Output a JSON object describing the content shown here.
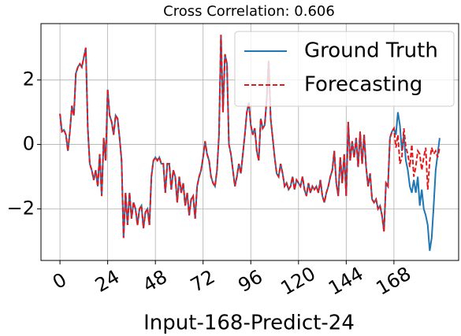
{
  "chart_data": {
    "type": "line",
    "title": "Cross Correlation: 0.606",
    "x_label": "Input-168-Predict-24",
    "x": [
      0,
      1,
      2,
      3,
      4,
      5,
      6,
      7,
      8,
      9,
      10,
      11,
      12,
      13,
      14,
      15,
      16,
      17,
      18,
      19,
      20,
      21,
      22,
      23,
      24,
      25,
      26,
      27,
      28,
      29,
      30,
      31,
      32,
      33,
      34,
      35,
      36,
      37,
      38,
      39,
      40,
      41,
      42,
      43,
      44,
      45,
      46,
      47,
      48,
      49,
      50,
      51,
      52,
      53,
      54,
      55,
      56,
      57,
      58,
      59,
      60,
      61,
      62,
      63,
      64,
      65,
      66,
      67,
      68,
      69,
      70,
      71,
      72,
      73,
      74,
      75,
      76,
      77,
      78,
      79,
      80,
      81,
      82,
      83,
      84,
      85,
      86,
      87,
      88,
      89,
      90,
      91,
      92,
      93,
      94,
      95,
      96,
      97,
      98,
      99,
      100,
      101,
      102,
      103,
      104,
      105,
      106,
      107,
      108,
      109,
      110,
      111,
      112,
      113,
      114,
      115,
      116,
      117,
      118,
      119,
      120,
      121,
      122,
      123,
      124,
      125,
      126,
      127,
      128,
      129,
      130,
      131,
      132,
      133,
      134,
      135,
      136,
      137,
      138,
      139,
      140,
      141,
      142,
      143,
      144,
      145,
      146,
      147,
      148,
      149,
      150,
      151,
      152,
      153,
      154,
      155,
      156,
      157,
      158,
      159,
      160,
      161,
      162,
      163,
      164,
      165,
      166,
      167,
      168,
      169,
      170,
      171,
      172,
      173,
      174,
      175,
      176,
      177,
      178,
      179,
      180,
      181,
      182,
      183,
      184,
      185,
      186,
      187,
      188,
      189,
      190,
      191
    ],
    "series": [
      {
        "name": "Ground Truth",
        "color": "#1f77b4",
        "dash": "solid",
        "values": [
          0.95,
          0.4,
          0.45,
          0.3,
          -0.2,
          0.4,
          1.2,
          0.9,
          2.2,
          2.4,
          2.5,
          2.4,
          2.7,
          3.0,
          0.5,
          -0.6,
          -0.8,
          -1.1,
          -0.8,
          -1.3,
          -0.3,
          -1.6,
          0.2,
          -0.5,
          1.7,
          0.9,
          0.7,
          0.3,
          0.9,
          0.8,
          0.2,
          -0.5,
          -2.9,
          -1.5,
          -2.5,
          -1.5,
          -2.3,
          -1.8,
          -2.0,
          -2.5,
          -2.0,
          -1.9,
          -2.6,
          -2.1,
          -2.0,
          -2.5,
          -1.0,
          -0.5,
          -0.4,
          -0.5,
          -0.4,
          -0.6,
          -0.6,
          -1.5,
          -0.6,
          -0.6,
          -1.4,
          -0.8,
          -1.0,
          -1.8,
          -1.0,
          -1.5,
          -1.2,
          -1.9,
          -1.5,
          -2.2,
          -1.7,
          -1.6,
          -2.3,
          -1.3,
          -1.0,
          -0.8,
          -0.4,
          0.1,
          -0.3,
          -0.5,
          -1.0,
          -1.2,
          -1.3,
          -0.8,
          0.3,
          3.4,
          1.0,
          2.8,
          2.5,
          0.0,
          -0.3,
          -0.8,
          -1.3,
          -1.0,
          -0.6,
          -0.9,
          -0.3,
          0.3,
          1.0,
          1.3,
          0.6,
          0.3,
          0.5,
          -0.2,
          -0.5,
          0.8,
          0.5,
          0.6,
          1.4,
          2.6,
          0.8,
          0.2,
          -0.4,
          -0.9,
          -1.0,
          -0.6,
          -0.9,
          -1.3,
          -1.2,
          -1.4,
          -1.3,
          -1.0,
          -1.4,
          -1.1,
          -1.2,
          -1.3,
          -1.0,
          -1.4,
          -1.6,
          -1.2,
          -1.5,
          -1.3,
          -1.4,
          -1.3,
          -1.5,
          -1.1,
          -1.6,
          -1.8,
          -1.5,
          -1.3,
          -1.0,
          -0.8,
          -0.2,
          -1.2,
          -1.6,
          -0.4,
          -1.2,
          -0.3,
          -1.6,
          0.7,
          -0.5,
          0.1,
          -0.4,
          0.2,
          -0.7,
          0.4,
          -0.6,
          0.3,
          -0.7,
          -1.3,
          -0.9,
          -1.7,
          -1.8,
          -1.7,
          -2.0,
          -1.9,
          -2.2,
          -2.7,
          -1.2,
          -1.3,
          0.2,
          0.4,
          0.5,
          0.3,
          1.0,
          0.6,
          -0.2,
          0.3,
          -0.5,
          -0.8,
          -1.3,
          -1.5,
          -1.1,
          -1.5,
          -1.0,
          -1.9,
          -1.4,
          -2.0,
          -2.2,
          -2.5,
          -3.3,
          -2.9,
          -1.9,
          -0.8,
          -0.3,
          0.2
        ]
      },
      {
        "name": "Forecasting",
        "color": "#e31a1c",
        "dash": "dashed",
        "values": [
          0.95,
          0.4,
          0.45,
          0.3,
          -0.2,
          0.4,
          1.2,
          0.9,
          2.2,
          2.4,
          2.5,
          2.4,
          2.7,
          3.0,
          0.5,
          -0.6,
          -0.8,
          -1.1,
          -0.8,
          -1.3,
          -0.3,
          -1.6,
          0.2,
          -0.5,
          1.7,
          0.9,
          0.7,
          0.3,
          0.9,
          0.8,
          0.2,
          -0.5,
          -2.9,
          -1.5,
          -2.5,
          -1.5,
          -2.3,
          -1.8,
          -2.0,
          -2.5,
          -2.0,
          -1.9,
          -2.6,
          -2.1,
          -2.0,
          -2.5,
          -1.0,
          -0.5,
          -0.4,
          -0.5,
          -0.4,
          -0.6,
          -0.6,
          -1.5,
          -0.6,
          -0.6,
          -1.4,
          -0.8,
          -1.0,
          -1.8,
          -1.0,
          -1.5,
          -1.2,
          -1.9,
          -1.5,
          -2.2,
          -1.7,
          -1.6,
          -2.3,
          -1.3,
          -1.0,
          -0.8,
          -0.4,
          0.1,
          -0.3,
          -0.5,
          -1.0,
          -1.2,
          -1.3,
          -0.8,
          0.3,
          3.4,
          1.0,
          2.8,
          2.5,
          0.0,
          -0.3,
          -0.8,
          -1.3,
          -1.0,
          -0.6,
          -0.9,
          -0.3,
          0.3,
          1.0,
          1.3,
          0.6,
          0.3,
          0.5,
          -0.2,
          -0.5,
          0.8,
          0.5,
          0.6,
          1.4,
          2.6,
          0.8,
          0.2,
          -0.4,
          -0.9,
          -1.0,
          -0.6,
          -0.9,
          -1.3,
          -1.2,
          -1.4,
          -1.3,
          -1.0,
          -1.4,
          -1.1,
          -1.2,
          -1.3,
          -1.0,
          -1.4,
          -1.6,
          -1.2,
          -1.5,
          -1.3,
          -1.4,
          -1.3,
          -1.5,
          -1.1,
          -1.6,
          -1.8,
          -1.5,
          -1.3,
          -1.0,
          -0.8,
          -0.2,
          -1.2,
          -1.6,
          -0.4,
          -1.2,
          -0.3,
          -1.6,
          0.7,
          -0.5,
          0.1,
          -0.4,
          0.2,
          -0.7,
          0.4,
          -0.6,
          0.3,
          -0.7,
          -1.3,
          -0.9,
          -1.7,
          -1.8,
          -1.7,
          -2.0,
          -1.9,
          -2.2,
          -2.7,
          -1.2,
          -1.3,
          0.2,
          0.4,
          0.5,
          -0.1,
          0.3,
          -0.6,
          -0.4,
          0.5,
          -0.1,
          -0.3,
          -0.7,
          0.0,
          -1.0,
          -0.7,
          -0.2,
          -0.3,
          -0.8,
          -0.4,
          -0.1,
          -1.4,
          -0.5,
          -0.1,
          -0.3,
          -0.2,
          -0.4,
          -0.1
        ]
      }
    ],
    "xlim": [
      -9.55,
      200.55
    ],
    "ylim": [
      -3.6,
      3.75
    ],
    "xticks": [
      0,
      24,
      48,
      72,
      96,
      120,
      144,
      168
    ],
    "yticks": [
      {
        "value": -2,
        "label": "−2"
      },
      0,
      2
    ],
    "grid": true,
    "legend": "upper right"
  }
}
